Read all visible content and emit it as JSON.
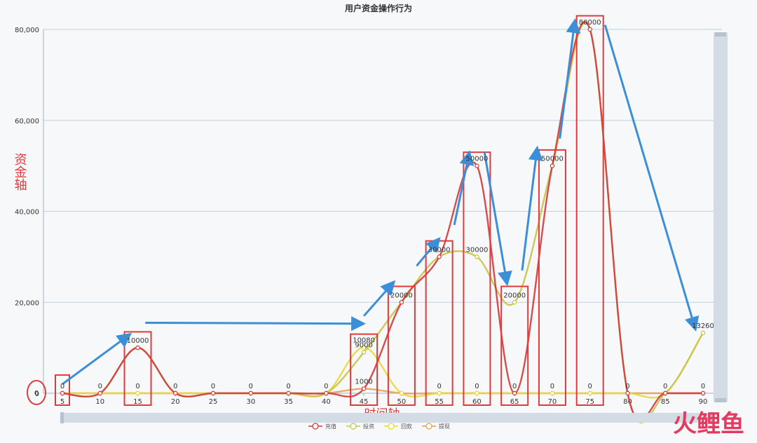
{
  "chart_data": {
    "type": "line",
    "title": "用户资金操作行为",
    "xlabel": "时间轴",
    "ylabel": "资金轴",
    "x": [
      5,
      10,
      15,
      20,
      25,
      30,
      35,
      40,
      45,
      50,
      55,
      60,
      65,
      70,
      75,
      80,
      85,
      90
    ],
    "xlim": [
      5,
      90
    ],
    "ylim": [
      0,
      80000
    ],
    "yticks": [
      0,
      20000,
      40000,
      60000,
      80000
    ],
    "ytick_labels": [
      "0",
      "20,000",
      "40,000",
      "60,000",
      "80,000"
    ],
    "grid": true,
    "legend_position": "bottom",
    "series": [
      {
        "name": "充值",
        "color": "#d23a3a",
        "values": [
          0,
          0,
          10000,
          0,
          0,
          0,
          0,
          0,
          1000,
          20000,
          30000,
          50000,
          0,
          50000,
          80000,
          0,
          0,
          0
        ]
      },
      {
        "name": "投资",
        "color": "#c8c24a",
        "values": [
          0,
          0,
          10000,
          0,
          0,
          0,
          0,
          0,
          9000,
          20000,
          30000,
          30000,
          20000,
          50000,
          80000,
          0,
          0,
          13260
        ]
      },
      {
        "name": "回款",
        "color": "#e8d83a",
        "values": [
          0,
          0,
          0,
          0,
          0,
          0,
          0,
          0,
          10080,
          0,
          0,
          0,
          0,
          0,
          0,
          0,
          0,
          13260
        ]
      },
      {
        "name": "提现",
        "color": "#e8a05a",
        "values": [
          0,
          0,
          0,
          0,
          0,
          0,
          0,
          0,
          1000,
          0,
          0,
          0,
          0,
          0,
          0,
          0,
          0,
          0
        ]
      }
    ],
    "data_labels": [
      {
        "x": 5,
        "y": 0,
        "text": "0"
      },
      {
        "x": 10,
        "y": 0,
        "text": "0"
      },
      {
        "x": 15,
        "y": 10000,
        "text": "10000"
      },
      {
        "x": 15,
        "y": 0,
        "text": "0"
      },
      {
        "x": 20,
        "y": 0,
        "text": "0"
      },
      {
        "x": 25,
        "y": 0,
        "text": "0"
      },
      {
        "x": 30,
        "y": 0,
        "text": "0"
      },
      {
        "x": 35,
        "y": 0,
        "text": "0"
      },
      {
        "x": 40,
        "y": 0,
        "text": "0"
      },
      {
        "x": 45,
        "y": 10080,
        "text": "10080"
      },
      {
        "x": 45,
        "y": 9000,
        "text": "9000"
      },
      {
        "x": 45,
        "y": 1000,
        "text": "1000"
      },
      {
        "x": 50,
        "y": 20000,
        "text": "20000"
      },
      {
        "x": 55,
        "y": 30000,
        "text": "30000"
      },
      {
        "x": 55,
        "y": 0,
        "text": "0"
      },
      {
        "x": 60,
        "y": 50000,
        "text": "50000"
      },
      {
        "x": 60,
        "y": 30000,
        "text": "30000"
      },
      {
        "x": 60,
        "y": 0,
        "text": "0"
      },
      {
        "x": 65,
        "y": 20000,
        "text": "20000"
      },
      {
        "x": 65,
        "y": 0,
        "text": "0"
      },
      {
        "x": 70,
        "y": 50000,
        "text": "50000"
      },
      {
        "x": 70,
        "y": 0,
        "text": "0"
      },
      {
        "x": 75,
        "y": 80000,
        "text": "80000"
      },
      {
        "x": 75,
        "y": 0,
        "text": "0"
      },
      {
        "x": 80,
        "y": 0,
        "text": "0"
      },
      {
        "x": 85,
        "y": 0,
        "text": "0"
      },
      {
        "x": 90,
        "y": 13260,
        "text": "13260"
      },
      {
        "x": 90,
        "y": 0,
        "text": "0"
      }
    ],
    "annotation_boxes": [
      {
        "x": 5,
        "y_top": 4000
      },
      {
        "x": 15,
        "y_top": 13500
      },
      {
        "x": 45,
        "y_top": 13000
      },
      {
        "x": 50,
        "y_top": 23500
      },
      {
        "x": 55,
        "y_top": 33500
      },
      {
        "x": 60,
        "y_top": 53000
      },
      {
        "x": 65,
        "y_top": 23500
      },
      {
        "x": 70,
        "y_top": 53500
      },
      {
        "x": 75,
        "y_top": 83000
      }
    ],
    "trend_arrows": [
      {
        "from": [
          5,
          2000
        ],
        "to": [
          14,
          13000
        ]
      },
      {
        "from": [
          16,
          15500
        ],
        "to": [
          45,
          15300
        ]
      },
      {
        "from": [
          45,
          17000
        ],
        "to": [
          49,
          24500
        ]
      },
      {
        "from": [
          52,
          28000
        ],
        "to": [
          55,
          34000
        ]
      },
      {
        "from": [
          57,
          37000
        ],
        "to": [
          59,
          53000
        ]
      },
      {
        "from": [
          61,
          53000
        ],
        "to": [
          64,
          24000
        ]
      },
      {
        "from": [
          66,
          27000
        ],
        "to": [
          68,
          54000
        ]
      },
      {
        "from": [
          71,
          56000
        ],
        "to": [
          73,
          82000
        ]
      },
      {
        "from": [
          77,
          81000
        ],
        "to": [
          89,
          14000
        ]
      }
    ]
  },
  "colors": {
    "annotation": "#e23a3a",
    "arrow": "#3b8fd8",
    "grid": "#bfd1dc",
    "axis": "#9fb2bf",
    "text": "#333333",
    "slider": "#d3dbe4"
  },
  "watermark": {
    "text": "火鲤鱼",
    "color": "#e53a5f"
  }
}
